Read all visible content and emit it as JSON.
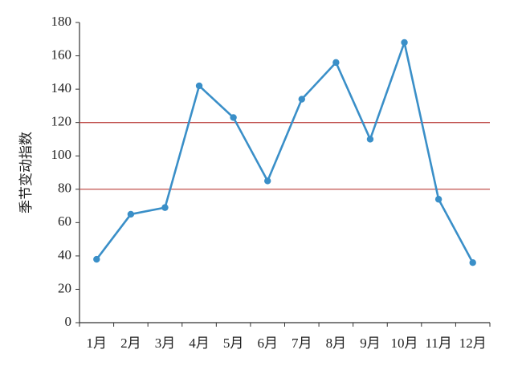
{
  "chart_data": {
    "type": "line",
    "y_label": "季节变动指数",
    "categories": [
      "1月",
      "2月",
      "3月",
      "4月",
      "5月",
      "6月",
      "7月",
      "8月",
      "9月",
      "10月",
      "11月",
      "12月"
    ],
    "series": [
      {
        "name": "季节变动指数",
        "color": "#3a8fc8",
        "values": [
          38,
          65,
          69,
          142,
          123,
          85,
          134,
          156,
          110,
          168,
          74,
          36
        ]
      }
    ],
    "ylim": [
      0,
      180
    ],
    "yticks": [
      0,
      20,
      40,
      60,
      80,
      100,
      120,
      140,
      160,
      180
    ],
    "grid": false,
    "reference_lines": [
      80,
      120
    ],
    "reference_color": "#c0504d"
  }
}
